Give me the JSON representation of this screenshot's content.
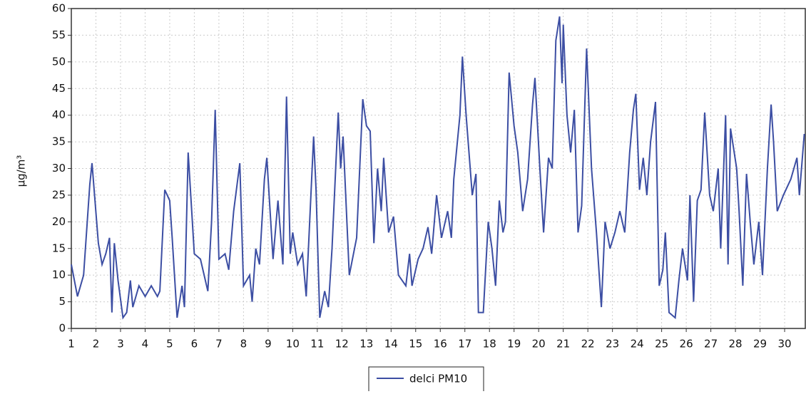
{
  "chart_data": {
    "type": "line",
    "y_label": "μg/m³",
    "legend": "bottom",
    "grid": true,
    "xlim": [
      1,
      30.84
    ],
    "xticks": [
      1,
      2,
      3,
      4,
      5,
      6,
      7,
      8,
      9,
      10,
      11,
      12,
      13,
      14,
      15,
      16,
      17,
      18,
      19,
      20,
      21,
      22,
      23,
      24,
      25,
      26,
      27,
      28,
      29,
      30
    ],
    "ylim": [
      0,
      60
    ],
    "yticks": [
      0,
      5,
      10,
      15,
      20,
      25,
      30,
      35,
      40,
      45,
      50,
      55,
      60
    ],
    "x": [
      1,
      1.25,
      1.5,
      1.75,
      1.84,
      2.1,
      2.25,
      2.4,
      2.55,
      2.65,
      2.75,
      2.9,
      3.1,
      3.25,
      3.4,
      3.5,
      3.75,
      4,
      4.25,
      4.5,
      4.6,
      4.8,
      5,
      5.1,
      5.3,
      5.5,
      5.6,
      5.75,
      6,
      6.25,
      6.55,
      6.7,
      6.85,
      7,
      7.25,
      7.4,
      7.6,
      7.85,
      8,
      8.25,
      8.35,
      8.5,
      8.65,
      8.85,
      8.95,
      9.2,
      9.4,
      9.6,
      9.75,
      9.9,
      10,
      10.2,
      10.4,
      10.55,
      10.85,
      10.95,
      11.1,
      11.3,
      11.45,
      11.6,
      11.85,
      11.95,
      12.05,
      12.3,
      12.6,
      12.85,
      13,
      13.15,
      13.3,
      13.45,
      13.6,
      13.7,
      13.9,
      14.1,
      14.3,
      14.6,
      14.75,
      14.85,
      15.1,
      15.3,
      15.5,
      15.65,
      15.85,
      16.05,
      16.3,
      16.45,
      16.55,
      16.8,
      16.9,
      17.05,
      17.3,
      17.45,
      17.55,
      17.75,
      17.95,
      18.1,
      18.25,
      18.4,
      18.55,
      18.65,
      18.8,
      19,
      19.15,
      19.35,
      19.55,
      19.75,
      19.85,
      20.05,
      20.2,
      20.4,
      20.55,
      20.7,
      20.85,
      20.95,
      21,
      21.15,
      21.3,
      21.45,
      21.6,
      21.75,
      21.95,
      22.15,
      22.35,
      22.55,
      22.7,
      22.9,
      23.1,
      23.3,
      23.5,
      23.7,
      23.85,
      23.95,
      24.1,
      24.25,
      24.4,
      24.55,
      24.75,
      24.9,
      25.05,
      25.15,
      25.3,
      25.55,
      25.7,
      25.85,
      26.05,
      26.15,
      26.3,
      26.45,
      26.6,
      26.75,
      26.95,
      27.1,
      27.3,
      27.4,
      27.6,
      27.7,
      27.8,
      28.05,
      28.15,
      28.3,
      28.45,
      28.6,
      28.75,
      28.95,
      29.1,
      29.3,
      29.45,
      29.55,
      29.7,
      29.95,
      30.25,
      30.5,
      30.6,
      30.8
    ],
    "series": [
      {
        "name": "delci PM10",
        "color": "#3c4ea3",
        "values": [
          12,
          6,
          10,
          27,
          31,
          16,
          12,
          14,
          17,
          3,
          16,
          9,
          2,
          3,
          9,
          4,
          8,
          6,
          8,
          6,
          7,
          26,
          24,
          17,
          2,
          8,
          4,
          33,
          14,
          13,
          7,
          20,
          41,
          13,
          14,
          11,
          22,
          31,
          8,
          10,
          5,
          15,
          12,
          28,
          32,
          13,
          24,
          12,
          43.5,
          14,
          18,
          12,
          14,
          6,
          36,
          26,
          2,
          7,
          4,
          15,
          40.5,
          30,
          36,
          10,
          17,
          43,
          38,
          37,
          16,
          30,
          22,
          32,
          18,
          21,
          10,
          8,
          14,
          8,
          13,
          15,
          19,
          14,
          25,
          17,
          22,
          17,
          28,
          40,
          51,
          40,
          25,
          29,
          3,
          3,
          20,
          15,
          8,
          24,
          18,
          20,
          48,
          38,
          33,
          22,
          28,
          42,
          47,
          30,
          18,
          32,
          30,
          54,
          58.5,
          46,
          57,
          40,
          33,
          41,
          18,
          23,
          52.5,
          30,
          18,
          4,
          20,
          15,
          18,
          22,
          18,
          33,
          41,
          44,
          26,
          32,
          25,
          35,
          42.5,
          8,
          11,
          18,
          3,
          2,
          9,
          15,
          9,
          25,
          5,
          24,
          26,
          40.5,
          25,
          22,
          30,
          15,
          40,
          12,
          37.5,
          30,
          22,
          8,
          29,
          20,
          12,
          20,
          10,
          30,
          42,
          35,
          22,
          25,
          28,
          32,
          25,
          36.5
        ]
      }
    ]
  }
}
